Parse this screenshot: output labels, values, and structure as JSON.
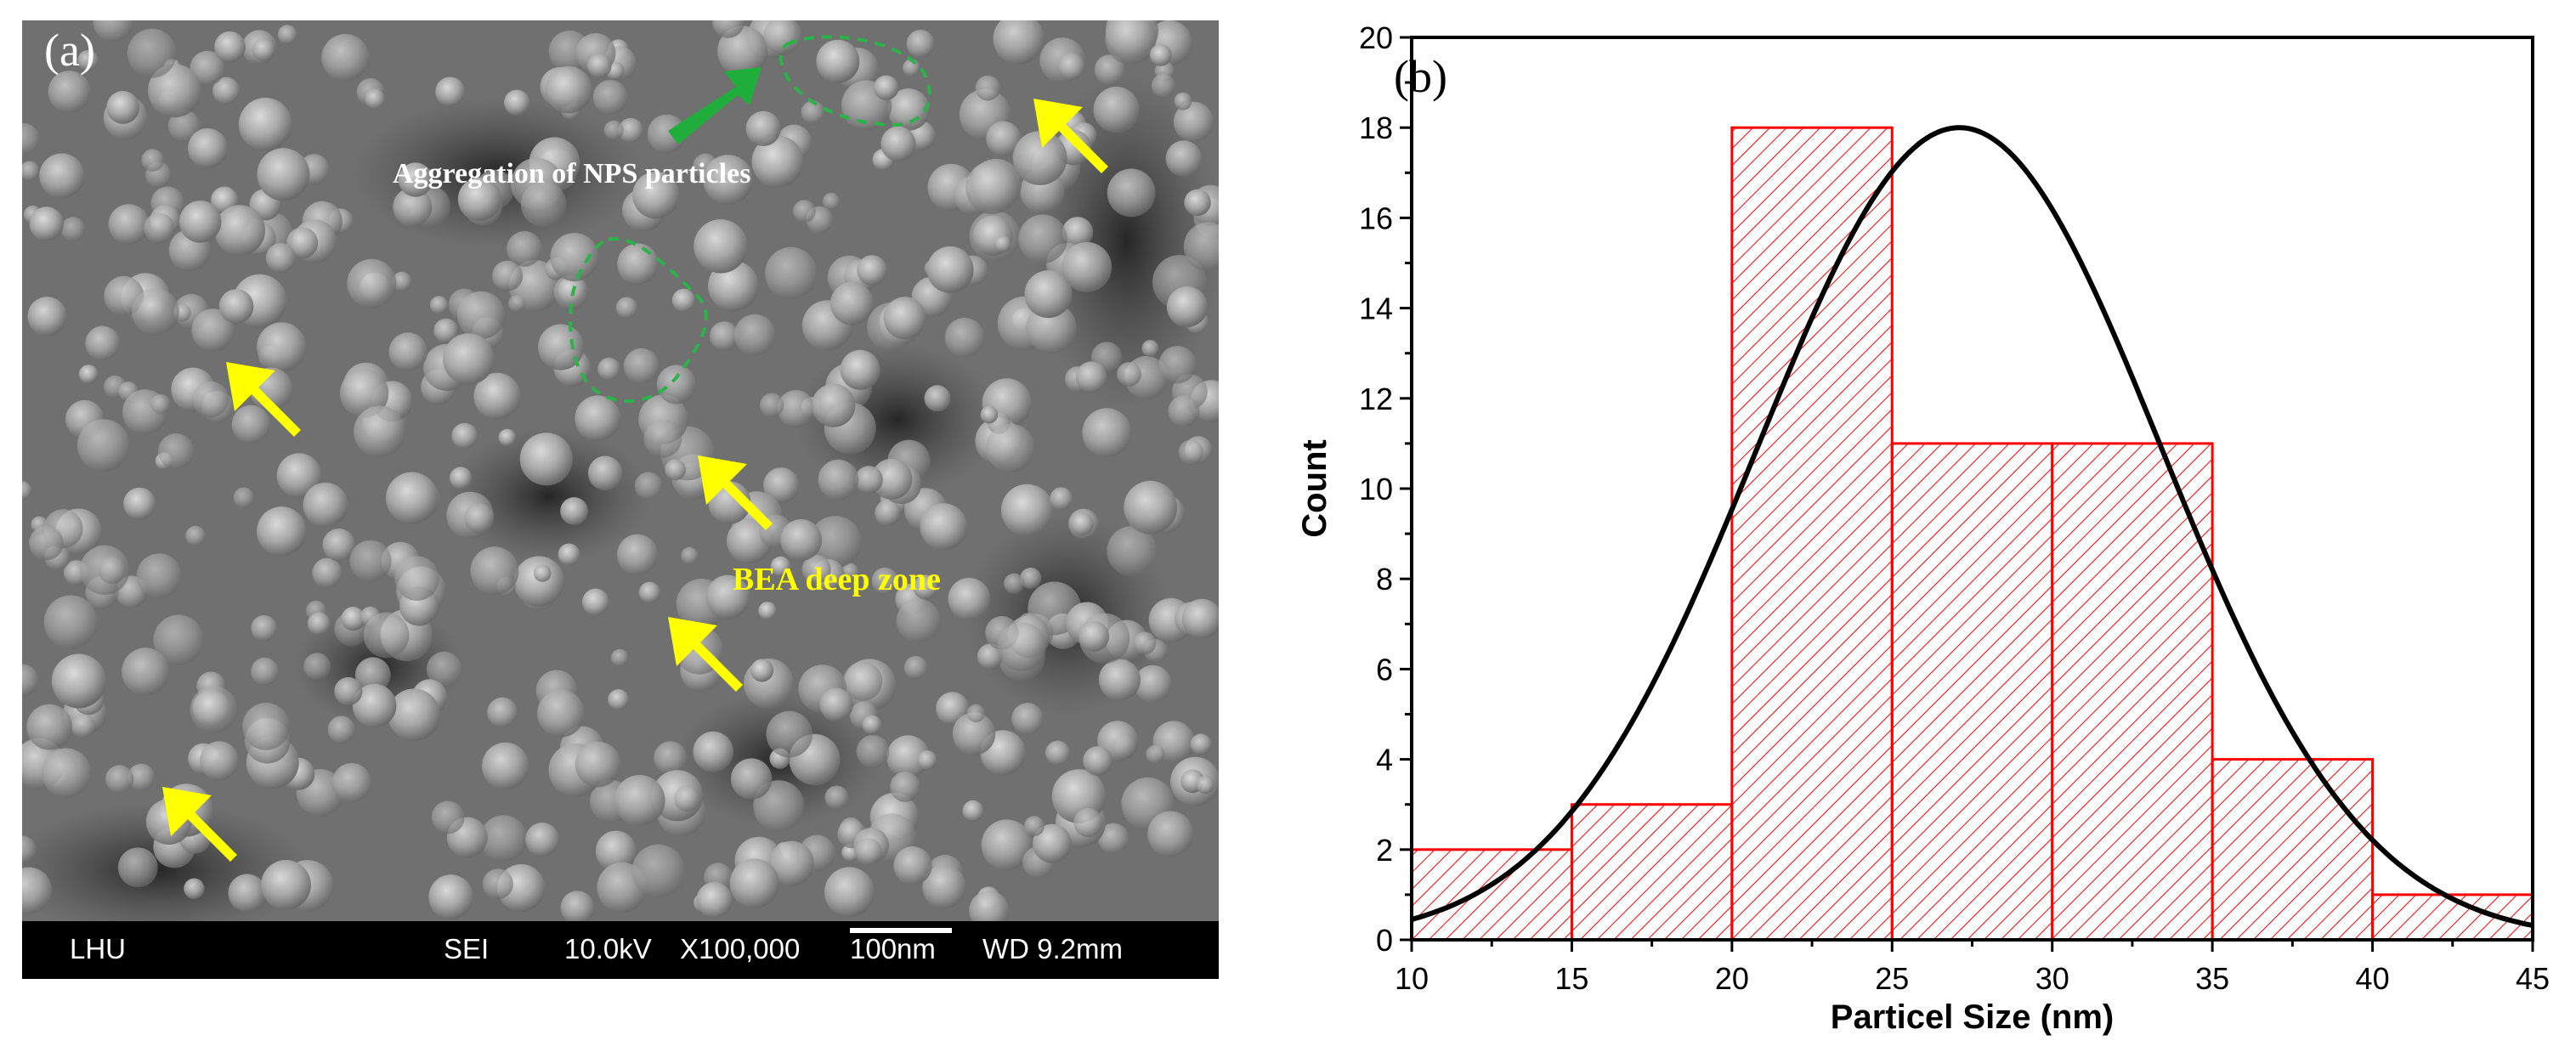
{
  "panel_a": {
    "label": "(a)",
    "annotations": {
      "aggregation": "Aggregation of NPS particles",
      "deep_zone": "BEA deep zone"
    },
    "footer": {
      "lab": "LHU",
      "mode": "SEI",
      "voltage": "10.0kV",
      "magnification": "X100,000",
      "scale": "100nm",
      "working_distance": "WD 9.2mm"
    },
    "colors": {
      "arrow_yellow": "#ffff00",
      "arrow_green": "#1fae3c",
      "outline_green": "#2bb34a"
    }
  },
  "panel_b": {
    "label": "(b)"
  },
  "chart_data": {
    "type": "bar",
    "xlabel": "Particel Size (nm)",
    "ylabel": "Count",
    "xlim": [
      10,
      45
    ],
    "ylim": [
      0,
      20
    ],
    "xticks": [
      10,
      15,
      20,
      25,
      30,
      35,
      40,
      45
    ],
    "yticks": [
      0,
      2,
      4,
      6,
      8,
      10,
      12,
      14,
      16,
      18,
      20
    ],
    "bins": [
      {
        "from": 10,
        "to": 15,
        "count": 2
      },
      {
        "from": 15,
        "to": 20,
        "count": 3
      },
      {
        "from": 20,
        "to": 25,
        "count": 18
      },
      {
        "from": 25,
        "to": 30,
        "count": 11
      },
      {
        "from": 30,
        "to": 35,
        "count": 11
      },
      {
        "from": 35,
        "to": 40,
        "count": 4
      },
      {
        "from": 40,
        "to": 45,
        "count": 1
      }
    ],
    "fit_curve": {
      "type": "gaussian",
      "mean": 27.1,
      "sigma": 6.3,
      "amplitude": 18.0
    },
    "bar_color": "#ff0000",
    "bar_pattern": "diagonal-hatch",
    "curve_color": "#000000"
  }
}
